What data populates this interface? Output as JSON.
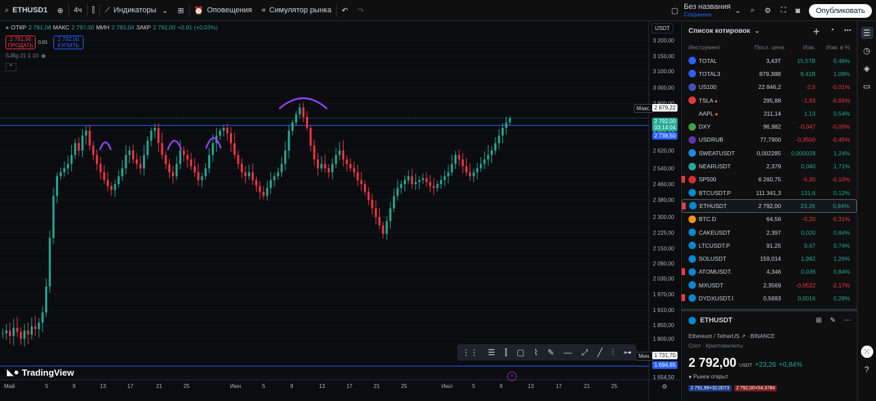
{
  "toolbar": {
    "symbol": "ETHUSD1",
    "interval": "4ч",
    "indicators": "Индикаторы",
    "alerts": "Оповещения",
    "replay": "Симулятор рынка",
    "layout_name": "Без названия",
    "layout_status": "Сохранено",
    "publish": "Опубликовать"
  },
  "legend": {
    "open_label": "ОТКР",
    "open": "2 791,08",
    "high_label": "МАКС",
    "high": "2 797,00",
    "low_label": "МИН",
    "low": "2 783,04",
    "close_label": "ЗАКР",
    "close": "2 792,00",
    "change": "+0,91 (+0,03%)",
    "sell_price": "2 791,99",
    "sell_label": "ПРОДАТЬ",
    "spread": "0,01",
    "buy_price": "2 792,00",
    "buy_label": "КУПИТЬ",
    "study": "SJBg 21 1 10",
    "currency": "USDT"
  },
  "chart_data": {
    "type": "candlestick",
    "price_axis": [
      "3 200,00",
      "3 150,00",
      "3 100,00",
      "3 000,00",
      "2 900,00",
      "2 700,00",
      "2 620,00",
      "2 540,00",
      "2 460,00",
      "2 380,00",
      "2 300,00",
      "2 225,00",
      "2 150,00",
      "2 090,00",
      "2 030,00",
      "1 970,00",
      "1 910,00",
      "1 850,00",
      "1 800,00",
      "1 654,50"
    ],
    "time_axis": [
      "Май",
      "5",
      "9",
      "13",
      "17",
      "21",
      "25",
      "Июн",
      "5",
      "9",
      "13",
      "17",
      "21",
      "25",
      "Июл",
      "5",
      "9",
      "13",
      "17",
      "21",
      "25"
    ],
    "ylim": [
      1654.5,
      3300
    ],
    "max_label": "Макс.",
    "max_value": "2 879,22",
    "min_label": "Мин.",
    "min_value": "1 731,70",
    "last_price": "2 792,00",
    "countdown": "03:14:04",
    "resistance": "2 738,50",
    "support": "1 694,65",
    "close_path": [
      1820,
      1830,
      1810,
      1840,
      1825,
      1800,
      1830,
      1815,
      1845,
      1835,
      1860,
      1900,
      2000,
      2200,
      2400,
      2500,
      2520,
      2540,
      2560,
      2600,
      2650,
      2620,
      2680,
      2700,
      2640,
      2600,
      2560,
      2520,
      2480,
      2450,
      2430,
      2460,
      2500,
      2540,
      2600,
      2620,
      2580,
      2560,
      2540,
      2600,
      2660,
      2700,
      2720,
      2650,
      2600,
      2560,
      2520,
      2500,
      2560,
      2620,
      2600,
      2580,
      2550,
      2520,
      2480,
      2500,
      2540,
      2600,
      2650,
      2680,
      2700,
      2720,
      2690,
      2650,
      2600,
      2560,
      2520,
      2500,
      2520,
      2480,
      2450,
      2420,
      2400,
      2440,
      2480,
      2500,
      2520,
      2560,
      2620,
      2700,
      2760,
      2820,
      2870,
      2800,
      2720,
      2640,
      2580,
      2540,
      2560,
      2540,
      2520,
      2560,
      2600,
      2620,
      2580,
      2560,
      2540,
      2520,
      2480,
      2460,
      2420,
      2380,
      2340,
      2300,
      2260,
      2220,
      2280,
      2340,
      2400,
      2440,
      2460,
      2480,
      2500,
      2460,
      2470,
      2480,
      2490,
      2470,
      2450,
      2440,
      2460,
      2480,
      2500,
      2520,
      2560,
      2600,
      2580,
      2550,
      2520,
      2500,
      2520,
      2540,
      2560,
      2580,
      2600,
      2620,
      2650,
      2680,
      2720,
      2760,
      2792
    ]
  },
  "drawing_toolbar": [
    "⋮⋮",
    "☰",
    "⫿",
    "▢",
    "⌇",
    "✎",
    "—",
    "⤢",
    "╱",
    "⫶",
    "⊶"
  ],
  "branding": "TradingView",
  "watchlist": {
    "title": "Список котировок",
    "cols": {
      "symbol": "Инструмент",
      "last": "Посл. цена",
      "chg": "Изм.",
      "chgp": "Изм. в %"
    },
    "rows": [
      {
        "sym": "TOTAL",
        "last": "3,43T",
        "chg": "15,57B",
        "chgp": "0,46%",
        "dir": "pos",
        "icon": "#2962ff",
        "flag": false,
        "dot": false
      },
      {
        "sym": "TOTAL3",
        "last": "879,38B",
        "chg": "9,41B",
        "chgp": "1,08%",
        "dir": "pos",
        "icon": "#2962ff",
        "flag": false,
        "dot": false
      },
      {
        "sym": "US100",
        "last": "22 846,2",
        "chg": "-2,5",
        "chgp": "-0,01%",
        "dir": "neg",
        "icon": "#3f51b5",
        "flag": false,
        "dot": false
      },
      {
        "sym": "TSLA",
        "last": "295,88",
        "chg": "-1,93",
        "chgp": "-0,65%",
        "dir": "neg",
        "icon": "#e53935",
        "flag": false,
        "dot": true
      },
      {
        "sym": "AAPL",
        "last": "211,14",
        "chg": "1,13",
        "chgp": "0,54%",
        "dir": "pos",
        "icon": "#0f0f0f",
        "flag": false,
        "dot": true
      },
      {
        "sym": "DXY",
        "last": "96,982",
        "chg": "-0,047",
        "chgp": "-0,05%",
        "dir": "neg",
        "icon": "#43a047",
        "flag": false,
        "dot": false
      },
      {
        "sym": "USDRUB",
        "last": "77,7900",
        "chg": "-0,3500",
        "chgp": "-0,45%",
        "dir": "neg",
        "icon": "#5e35b1",
        "flag": false,
        "dot": false
      },
      {
        "sym": "SWEATUSDT",
        "last": "0,002285",
        "chg": "0,000028",
        "chgp": "1,24%",
        "dir": "pos",
        "icon": "#1e88e5",
        "flag": false,
        "dot": false
      },
      {
        "sym": "NEARUSDT",
        "last": "2,379",
        "chg": "0,040",
        "chgp": "1,71%",
        "dir": "pos",
        "icon": "#26a69a",
        "flag": false,
        "dot": false
      },
      {
        "sym": "SP500",
        "last": "6 260,75",
        "chg": "-6,30",
        "chgp": "-0,10%",
        "dir": "neg",
        "icon": "#d32f2f",
        "flag": true,
        "dot": false
      },
      {
        "sym": "BTCUSDT.P",
        "last": "111 341,3",
        "chg": "131,6",
        "chgp": "0,12%",
        "dir": "pos",
        "icon": "#0288d1",
        "flag": false,
        "dot": false
      },
      {
        "sym": "ETHUSDT",
        "last": "2 792,00",
        "chg": "23,26",
        "chgp": "0,84%",
        "dir": "pos",
        "icon": "#0288d1",
        "flag": true,
        "dot": false,
        "sel": true
      },
      {
        "sym": "BTC.D",
        "last": "64,56",
        "chg": "-0,20",
        "chgp": "-0,31%",
        "dir": "neg",
        "icon": "#f7931a",
        "flag": false,
        "dot": false
      },
      {
        "sym": "CAKEUSDT",
        "last": "2,397",
        "chg": "0,020",
        "chgp": "0,84%",
        "dir": "pos",
        "icon": "#0288d1",
        "flag": false,
        "dot": false
      },
      {
        "sym": "LTCUSDT.P",
        "last": "91,25",
        "chg": "0,67",
        "chgp": "0,74%",
        "dir": "pos",
        "icon": "#0288d1",
        "flag": false,
        "dot": false
      },
      {
        "sym": "SOLUSDT",
        "last": "159,014",
        "chg": "1,982",
        "chgp": "1,26%",
        "dir": "pos",
        "icon": "#0288d1",
        "flag": false,
        "dot": false
      },
      {
        "sym": "ATOMUSDT.",
        "last": "4,346",
        "chg": "0,036",
        "chgp": "0,84%",
        "dir": "pos",
        "icon": "#0288d1",
        "flag": true,
        "dot": false
      },
      {
        "sym": "MXUSDT",
        "last": "2,3569",
        "chg": "-0,0522",
        "chgp": "-2,17%",
        "dir": "neg",
        "icon": "#0288d1",
        "flag": false,
        "dot": false
      },
      {
        "sym": "DYDXUSDT.I",
        "last": "0,5693",
        "chg": "0,0016",
        "chgp": "0,28%",
        "dir": "pos",
        "icon": "#0288d1",
        "flag": true,
        "dot": false
      }
    ]
  },
  "details": {
    "symbol": "ETHUSDT",
    "name": "Ethereum / TetherUS",
    "exchange": "· BINANCE",
    "kind": "Спот · Криптовалюты",
    "price": "2 792,00",
    "currency": "USDT",
    "change": "+23,26",
    "change_pct": "+0,84%",
    "status": "● Рынок открыт",
    "bid": "2 791,99×32,0073",
    "ask": "2 792,00×54,3784"
  },
  "colors": {
    "up": "#22ab94",
    "down": "#f23645",
    "accent": "#2962ff",
    "arc": "#8e44ec"
  }
}
